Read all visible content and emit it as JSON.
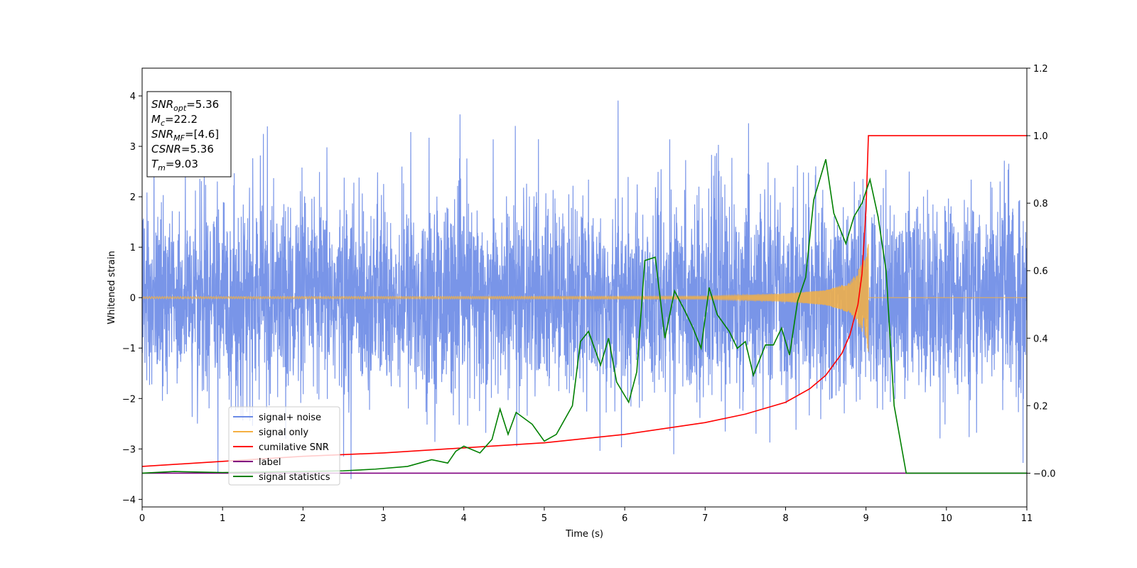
{
  "chart_data": {
    "type": "line",
    "xlabel": "Time (s)",
    "ylabel": "Whitened strain",
    "xlim": [
      0,
      11
    ],
    "ylim": [
      -4.15,
      4.55
    ],
    "y2lim": [
      -0.1,
      1.2
    ],
    "xticks": [
      "0",
      "1",
      "2",
      "3",
      "4",
      "5",
      "6",
      "7",
      "8",
      "9",
      "10",
      "11"
    ],
    "yticks": [
      "−4",
      "−3",
      "−2",
      "−1",
      "0",
      "1",
      "2",
      "3",
      "4"
    ],
    "y2ticks": [
      "−0.0",
      "0.2",
      "0.4",
      "0.6",
      "0.8",
      "1.0",
      "1.2"
    ],
    "grid": false,
    "legend_position": "lower-left",
    "colors": {
      "noise": "#6a8ae6",
      "signal": "#f5b042",
      "csnr": "#ff0000",
      "label": "#800080",
      "stats": "#008000"
    },
    "series": [
      {
        "name": "signal+ noise",
        "axis": "left",
        "note_range": "noise between about -2.5 and 2.5 with spikes up to 4.15 and down to -3.75"
      },
      {
        "name": "signal only",
        "axis": "left",
        "x": [
          0,
          7.0,
          8.0,
          8.5,
          8.8,
          9.0,
          9.03
        ],
        "amplitude": [
          0.02,
          0.03,
          0.08,
          0.15,
          0.3,
          0.8,
          1.1
        ]
      },
      {
        "name": "cumilative SNR",
        "axis": "right",
        "x": [
          0,
          1,
          2,
          3,
          4,
          5,
          6,
          7,
          7.5,
          8,
          8.3,
          8.5,
          8.7,
          8.8,
          8.9,
          8.95,
          9.0,
          9.03,
          11
        ],
        "values": [
          0.02,
          0.035,
          0.05,
          0.06,
          0.075,
          0.09,
          0.115,
          0.15,
          0.175,
          0.21,
          0.25,
          0.29,
          0.355,
          0.41,
          0.5,
          0.59,
          0.78,
          1.0,
          1.0
        ]
      },
      {
        "name": "label",
        "axis": "right",
        "x": [
          0,
          11
        ],
        "values": [
          0.0,
          0.0
        ]
      },
      {
        "name": "signal statistics",
        "axis": "right",
        "x": [
          0,
          0.4,
          1.0,
          2.0,
          2.5,
          2.9,
          3.3,
          3.6,
          3.8,
          3.9,
          4.0,
          4.2,
          4.35,
          4.45,
          4.55,
          4.65,
          4.85,
          5.0,
          5.15,
          5.35,
          5.45,
          5.55,
          5.7,
          5.8,
          5.9,
          6.05,
          6.15,
          6.25,
          6.38,
          6.5,
          6.62,
          6.75,
          6.85,
          6.95,
          7.05,
          7.15,
          7.3,
          7.4,
          7.5,
          7.6,
          7.75,
          7.85,
          7.95,
          8.05,
          8.15,
          8.25,
          8.35,
          8.5,
          8.6,
          8.75,
          8.85,
          8.95,
          9.05,
          9.15,
          9.25,
          9.35,
          9.5,
          11
        ],
        "values": [
          0.0,
          0.005,
          0.002,
          0.005,
          0.007,
          0.012,
          0.02,
          0.04,
          0.03,
          0.065,
          0.08,
          0.06,
          0.1,
          0.19,
          0.115,
          0.18,
          0.145,
          0.095,
          0.115,
          0.2,
          0.39,
          0.42,
          0.32,
          0.4,
          0.27,
          0.21,
          0.3,
          0.63,
          0.64,
          0.4,
          0.54,
          0.48,
          0.43,
          0.37,
          0.55,
          0.47,
          0.42,
          0.37,
          0.39,
          0.29,
          0.38,
          0.38,
          0.43,
          0.35,
          0.51,
          0.58,
          0.81,
          0.93,
          0.77,
          0.68,
          0.76,
          0.8,
          0.87,
          0.76,
          0.6,
          0.2,
          0.0,
          0.0
        ]
      }
    ],
    "annotation": {
      "lines": [
        {
          "base": "SNR",
          "sub": "opt",
          "value": "=5.36"
        },
        {
          "base": "M",
          "sub": "c",
          "value": "=22.2"
        },
        {
          "base": "SNR",
          "sub": "MF",
          "value": "=[4.6]"
        },
        {
          "base": "CSNR",
          "sub": "",
          "value": "=5.36"
        },
        {
          "base": "T",
          "sub": "m",
          "value": "=9.03"
        }
      ]
    }
  }
}
